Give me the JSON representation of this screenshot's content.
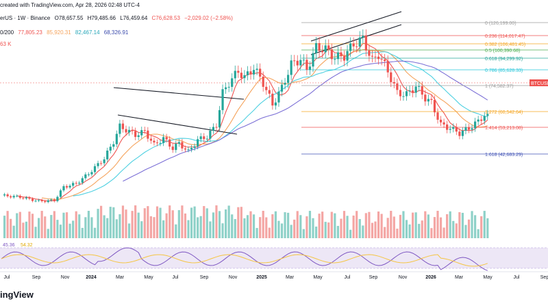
{
  "header": {
    "created_line": "created with TradingView.com, Apr 28, 2026 02:48 UTC-4",
    "symbol_line": "erUS · 1W · Binance",
    "ohlc": {
      "o": "O78,657.55",
      "h": "H79,485.66",
      "l": "L76,459.64",
      "c": "C76,628.53",
      "chg": "−2,029.02 (−2.58%)"
    },
    "ma_label": "0/200",
    "ma_values": [
      "77,805.23",
      "85,920.31",
      "82,467.14",
      "68,326.91"
    ],
    "vol_label": "63 K"
  },
  "colors": {
    "up": "#26a69a",
    "down": "#ef5350",
    "ma1": "#ef5350",
    "ma2": "#f5a35c",
    "ma3": "#4dd0e1",
    "ma4": "#7b6fd6",
    "rsi": "#7e57c2",
    "rsi_ma": "#f5c542"
  },
  "fib": [
    {
      "label": "0 (126,199.00)",
      "color": "#9e9e9e"
    },
    {
      "label": "0.236 (114,017.47)",
      "color": "#ef5350"
    },
    {
      "label": "0.382 (106,481.45)",
      "color": "#f5a623"
    },
    {
      "label": "0.5 (100,390.68)",
      "color": "#4caf50"
    },
    {
      "label": "0.618 (94,299.92)",
      "color": "#26a69a"
    },
    {
      "label": "0.786 (85,628.33)",
      "color": "#26c6da"
    },
    {
      "label": "1 (74,582.37)",
      "color": "#9e9e9e"
    },
    {
      "label": "1.272 (60,542.64)",
      "color": "#f5a623"
    },
    {
      "label": "1.414 (53,213.08)",
      "color": "#ef5350"
    },
    {
      "label": "1.618 (42,683.29)",
      "color": "#3f51b5"
    }
  ],
  "price_badge": "BTCUSD",
  "rsi_labels": {
    "rsi": "45.36",
    "rsi_ma": "54.32"
  },
  "x_axis_labels": [
    "Jul",
    "Sep",
    "Nov",
    "2024",
    "Mar",
    "May",
    "Jul",
    "Sep",
    "Nov",
    "2025",
    "Mar",
    "May",
    "Jul",
    "Sep",
    "Nov",
    "2026",
    "Mar",
    "May",
    "Jul",
    "Sep"
  ],
  "footer": {
    "brand": "ingView"
  },
  "chart_data": {
    "type": "candlestick",
    "timeframe": "1W",
    "moving_averages": [
      "77,805.23",
      "85,920.31",
      "82,467.14",
      "68,326.91"
    ],
    "fib_levels": [
      126199.0,
      114017.47,
      106481.45,
      100390.68,
      94299.92,
      85628.33,
      74582.37,
      60542.64,
      53213.08,
      42683.29
    ],
    "last_close": 76628.53
  }
}
